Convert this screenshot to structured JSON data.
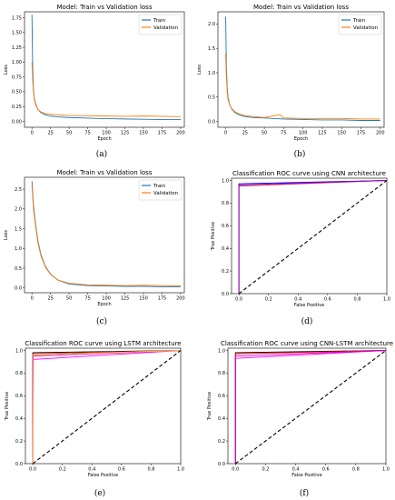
{
  "chart_data": [
    {
      "type": "line",
      "panel_label": "(a)",
      "title": "Model: Train vs Validation loss",
      "xlabel": "Epoch",
      "ylabel": "Loss",
      "xlim": [
        -10,
        205
      ],
      "ylim": [
        -0.1,
        1.85
      ],
      "xticks": [
        0,
        25,
        50,
        75,
        100,
        125,
        150,
        175,
        200
      ],
      "yticks": [
        0.0,
        0.25,
        0.5,
        0.75,
        1.0,
        1.25,
        1.5,
        1.75
      ],
      "ytick_labels": [
        "0.00",
        "0.25",
        "0.50",
        "0.75",
        "1.00",
        "1.25",
        "1.50",
        "1.75"
      ],
      "legend": "top-right",
      "series": [
        {
          "name": "Train",
          "color": "#1f77b4",
          "x": [
            0,
            1,
            2,
            3,
            5,
            8,
            12,
            18,
            25,
            35,
            50,
            75,
            100,
            125,
            150,
            175,
            200
          ],
          "y": [
            1.8,
            0.9,
            0.55,
            0.4,
            0.3,
            0.2,
            0.15,
            0.11,
            0.09,
            0.075,
            0.065,
            0.055,
            0.045,
            0.04,
            0.035,
            0.03,
            0.03
          ]
        },
        {
          "name": "Validation",
          "color": "#ff7f0e",
          "x": [
            0,
            1,
            2,
            3,
            5,
            8,
            12,
            18,
            25,
            35,
            50,
            75,
            100,
            125,
            150,
            175,
            200
          ],
          "y": [
            1.0,
            0.7,
            0.5,
            0.38,
            0.28,
            0.2,
            0.16,
            0.13,
            0.12,
            0.11,
            0.1,
            0.095,
            0.09,
            0.085,
            0.09,
            0.085,
            0.08
          ]
        }
      ]
    },
    {
      "type": "line",
      "panel_label": "(b)",
      "title": "Model: Train vs Validation loss",
      "xlabel": "Epoch",
      "ylabel": "Loss",
      "xlim": [
        -10,
        205
      ],
      "ylim": [
        -0.12,
        2.25
      ],
      "xticks": [
        0,
        25,
        50,
        75,
        100,
        125,
        150,
        175,
        200
      ],
      "yticks": [
        0.0,
        0.5,
        1.0,
        1.5,
        2.0
      ],
      "ytick_labels": [
        "0.0",
        "0.5",
        "1.0",
        "1.5",
        "2.0"
      ],
      "legend": "top-right",
      "series": [
        {
          "name": "Train",
          "color": "#1f77b4",
          "x": [
            0,
            1,
            2,
            3,
            5,
            8,
            12,
            18,
            25,
            35,
            50,
            75,
            100,
            125,
            150,
            175,
            200
          ],
          "y": [
            2.15,
            1.1,
            0.7,
            0.5,
            0.35,
            0.25,
            0.18,
            0.13,
            0.1,
            0.08,
            0.07,
            0.05,
            0.04,
            0.03,
            0.03,
            0.02,
            0.02
          ]
        },
        {
          "name": "Validation",
          "color": "#ff7f0e",
          "x": [
            0,
            1,
            2,
            3,
            5,
            8,
            12,
            18,
            25,
            35,
            50,
            70,
            75,
            100,
            125,
            150,
            175,
            200
          ],
          "y": [
            1.4,
            0.9,
            0.6,
            0.45,
            0.35,
            0.26,
            0.2,
            0.15,
            0.12,
            0.1,
            0.08,
            0.14,
            0.07,
            0.06,
            0.06,
            0.06,
            0.05,
            0.05
          ]
        }
      ]
    },
    {
      "type": "line",
      "panel_label": "(c)",
      "title": "Model: Train vs Validation loss",
      "xlabel": "Epoch",
      "ylabel": "Loss",
      "xlim": [
        -10,
        205
      ],
      "ylim": [
        -0.12,
        2.8
      ],
      "xticks": [
        0,
        25,
        50,
        75,
        100,
        125,
        150,
        175,
        200
      ],
      "yticks": [
        0.0,
        0.5,
        1.0,
        1.5,
        2.0,
        2.5
      ],
      "ytick_labels": [
        "0.0",
        "0.5",
        "1.0",
        "1.5",
        "2.0",
        "2.5"
      ],
      "legend": "top-right",
      "series": [
        {
          "name": "Train",
          "color": "#1f77b4",
          "x": [
            0,
            2,
            5,
            8,
            12,
            18,
            25,
            35,
            50,
            75,
            100,
            125,
            150,
            175,
            200
          ],
          "y": [
            2.7,
            2.1,
            1.6,
            1.2,
            0.85,
            0.55,
            0.35,
            0.2,
            0.1,
            0.06,
            0.05,
            0.04,
            0.04,
            0.03,
            0.03
          ]
        },
        {
          "name": "Validation",
          "color": "#ff7f0e",
          "x": [
            0,
            2,
            5,
            8,
            12,
            18,
            25,
            35,
            50,
            75,
            100,
            125,
            150,
            175,
            200
          ],
          "y": [
            2.6,
            2.0,
            1.55,
            1.15,
            0.82,
            0.53,
            0.34,
            0.2,
            0.12,
            0.08,
            0.07,
            0.06,
            0.07,
            0.06,
            0.05
          ]
        }
      ]
    },
    {
      "type": "line",
      "panel_label": "(d)",
      "title": "Classification ROC curve using CNN architecture",
      "xlabel": "False Positive",
      "ylabel": "True Positive",
      "xlim": [
        -0.05,
        1.0
      ],
      "ylim": [
        0.0,
        1.02
      ],
      "xticks": [
        0.0,
        0.2,
        0.4,
        0.6,
        0.8,
        1.0
      ],
      "yticks": [
        0.0,
        0.2,
        0.4,
        0.6,
        0.8,
        1.0
      ],
      "xtick_labels": [
        "0.0",
        "0.2",
        "0.4",
        "0.6",
        "0.8",
        "1.0"
      ],
      "ytick_labels": [
        "0.0",
        "0.2",
        "0.4",
        "0.6",
        "0.8",
        "1.0"
      ],
      "series": [
        {
          "color": "#0000ff",
          "x": [
            0,
            0,
            1
          ],
          "y": [
            0,
            0.97,
            1
          ]
        },
        {
          "color": "#d62728",
          "x": [
            0,
            0,
            1
          ],
          "y": [
            0,
            0.95,
            1
          ]
        },
        {
          "color": "#9400d3",
          "x": [
            0,
            0,
            1
          ],
          "y": [
            0,
            0.96,
            1
          ]
        },
        {
          "color": "#000000",
          "dashed": true,
          "x": [
            0,
            1
          ],
          "y": [
            0,
            1
          ]
        }
      ]
    },
    {
      "type": "line",
      "panel_label": "(e)",
      "title": "Classification ROC curve using LSTM architecture",
      "xlabel": "False Positive",
      "ylabel": "True Positive",
      "xlim": [
        -0.05,
        1.0
      ],
      "ylim": [
        0.0,
        1.02
      ],
      "xticks": [
        0.0,
        0.2,
        0.4,
        0.6,
        0.8,
        1.0
      ],
      "yticks": [
        0.0,
        0.2,
        0.4,
        0.6,
        0.8,
        1.0
      ],
      "xtick_labels": [
        "0.0",
        "0.2",
        "0.4",
        "0.6",
        "0.8",
        "1.0"
      ],
      "ytick_labels": [
        "0.0",
        "0.2",
        "0.4",
        "0.6",
        "0.8",
        "1.0"
      ],
      "series": [
        {
          "color": "#000000",
          "x": [
            0,
            0,
            1
          ],
          "y": [
            0,
            0.98,
            1
          ]
        },
        {
          "color": "#d62728",
          "x": [
            0,
            0,
            1
          ],
          "y": [
            0,
            0.97,
            1
          ]
        },
        {
          "color": "#ff00ff",
          "x": [
            0,
            0,
            1
          ],
          "y": [
            0,
            0.92,
            1
          ]
        },
        {
          "color": "#cc00cc",
          "x": [
            0,
            0,
            1
          ],
          "y": [
            0,
            0.95,
            1
          ]
        },
        {
          "color": "#ffcc33",
          "x": [
            0,
            0.005,
            1
          ],
          "y": [
            0,
            0.96,
            1
          ]
        },
        {
          "color": "#000000",
          "dashed": true,
          "x": [
            0,
            1
          ],
          "y": [
            0,
            1
          ]
        }
      ]
    },
    {
      "type": "line",
      "panel_label": "(f)",
      "title": "Classification ROC curve using CNN-LSTM architecture",
      "xlabel": "False Positive",
      "ylabel": "True Positive",
      "xlim": [
        -0.05,
        1.0
      ],
      "ylim": [
        0.0,
        1.02
      ],
      "xticks": [
        0.0,
        0.2,
        0.4,
        0.6,
        0.8,
        1.0
      ],
      "yticks": [
        0.0,
        0.2,
        0.4,
        0.6,
        0.8,
        1.0
      ],
      "xtick_labels": [
        "0.0",
        "0.2",
        "0.4",
        "0.6",
        "0.8",
        "1.0"
      ],
      "ytick_labels": [
        "0.0",
        "0.2",
        "0.4",
        "0.6",
        "0.8",
        "1.0"
      ],
      "series": [
        {
          "color": "#000000",
          "x": [
            0,
            0,
            1
          ],
          "y": [
            0,
            0.98,
            1
          ]
        },
        {
          "color": "#ff0000",
          "x": [
            0,
            0,
            1
          ],
          "y": [
            0,
            0.97,
            1
          ]
        },
        {
          "color": "#ff00ff",
          "x": [
            0,
            0,
            1
          ],
          "y": [
            0,
            0.93,
            1
          ]
        },
        {
          "color": "#cc00cc",
          "x": [
            0,
            0,
            1
          ],
          "y": [
            0,
            0.95,
            1
          ]
        },
        {
          "color": "#000000",
          "dashed": true,
          "x": [
            0,
            1
          ],
          "y": [
            0,
            1
          ]
        }
      ]
    }
  ]
}
